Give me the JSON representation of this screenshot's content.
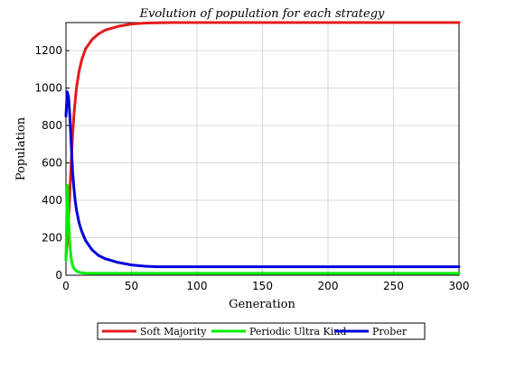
{
  "chart_data": {
    "type": "line",
    "title": "Evolution of population for each strategy",
    "xlabel": "Generation",
    "ylabel": "Population",
    "xlim": [
      0,
      300
    ],
    "ylim": [
      0,
      1350
    ],
    "xticks": [
      0,
      50,
      100,
      150,
      200,
      250,
      300
    ],
    "yticks": [
      0,
      200,
      400,
      600,
      800,
      1000,
      1200
    ],
    "grid": true,
    "legend_position": "bottom-center",
    "series": [
      {
        "name": "Soft Majority",
        "color": "#e41a1c",
        "x": [
          0,
          1,
          2,
          3,
          4,
          5,
          6,
          7,
          8,
          10,
          12,
          15,
          20,
          25,
          30,
          40,
          50,
          60,
          70,
          80,
          100,
          150,
          200,
          250,
          300
        ],
        "y": [
          100,
          180,
          300,
          450,
          600,
          740,
          850,
          930,
          1000,
          1090,
          1150,
          1210,
          1260,
          1290,
          1310,
          1330,
          1342,
          1347,
          1349,
          1350,
          1350,
          1350,
          1350,
          1350,
          1350
        ]
      },
      {
        "name": "Periodic Ultra Kind",
        "color": "#00ee00",
        "x": [
          0,
          1,
          2,
          3,
          4,
          5,
          6,
          7,
          8,
          10,
          12,
          15,
          20,
          30,
          50,
          100,
          150,
          200,
          250,
          300
        ],
        "y": [
          80,
          480,
          300,
          160,
          90,
          55,
          38,
          28,
          22,
          16,
          13,
          11,
          10,
          10,
          10,
          10,
          10,
          10,
          10,
          10
        ]
      },
      {
        "name": "Prober",
        "color": "#0000dd",
        "x": [
          0,
          1,
          2,
          3,
          4,
          5,
          6,
          7,
          8,
          10,
          12,
          15,
          20,
          25,
          30,
          40,
          50,
          60,
          70,
          100,
          150,
          200,
          250,
          300
        ],
        "y": [
          850,
          980,
          950,
          850,
          700,
          560,
          470,
          400,
          350,
          280,
          235,
          185,
          135,
          105,
          88,
          68,
          55,
          48,
          45,
          45,
          45,
          45,
          45,
          45
        ]
      }
    ]
  }
}
